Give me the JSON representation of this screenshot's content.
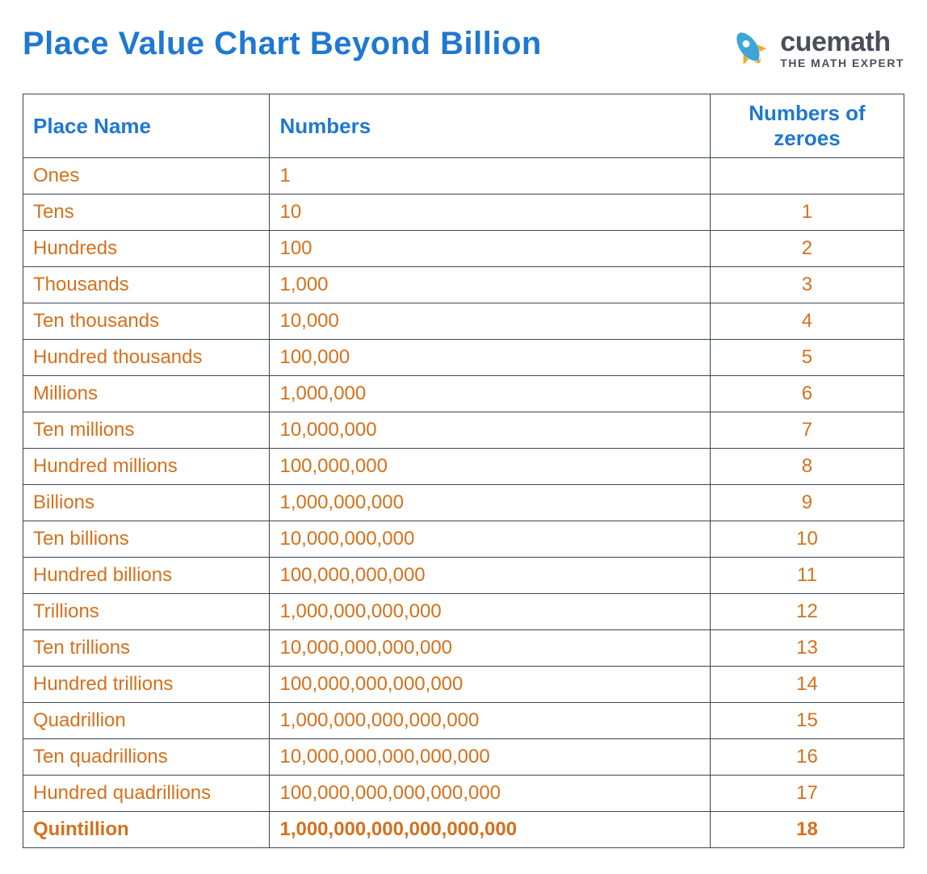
{
  "title": "Place Value Chart Beyond Billion",
  "title_color": "#1f78d1",
  "logo": {
    "main": "cuemath",
    "sub": "THE MATH EXPERT",
    "main_color": "#4a4f5a",
    "sub_color": "#4a4f5a",
    "rocket_body": "#3fa5d8",
    "rocket_flame": "#f5a623"
  },
  "table": {
    "border_color": "#3a4556",
    "header_color": "#1f78d1",
    "cell_color": "#d4711c",
    "columns": [
      "Place Name",
      "Numbers",
      "Numbers of zeroes"
    ],
    "rows": [
      {
        "place": "Ones",
        "number": "1",
        "zeroes": ""
      },
      {
        "place": "Tens",
        "number": "10",
        "zeroes": "1"
      },
      {
        "place": "Hundreds",
        "number": "100",
        "zeroes": "2"
      },
      {
        "place": "Thousands",
        "number": "1,000",
        "zeroes": "3"
      },
      {
        "place": "Ten thousands",
        "number": "10,000",
        "zeroes": "4"
      },
      {
        "place": "Hundred thousands",
        "number": "100,000",
        "zeroes": "5"
      },
      {
        "place": "Millions",
        "number": "1,000,000",
        "zeroes": "6"
      },
      {
        "place": "Ten millions",
        "number": "10,000,000",
        "zeroes": "7"
      },
      {
        "place": "Hundred millions",
        "number": "100,000,000",
        "zeroes": "8"
      },
      {
        "place": "Billions",
        "number": "1,000,000,000",
        "zeroes": "9"
      },
      {
        "place": "Ten billions",
        "number": "10,000,000,000",
        "zeroes": "10"
      },
      {
        "place": "Hundred billions",
        "number": "100,000,000,000",
        "zeroes": "11"
      },
      {
        "place": "Trillions",
        "number": "1,000,000,000,000",
        "zeroes": "12"
      },
      {
        "place": "Ten trillions",
        "number": "10,000,000,000,000",
        "zeroes": "13"
      },
      {
        "place": "Hundred trillions",
        "number": "100,000,000,000,000",
        "zeroes": "14"
      },
      {
        "place": "Quadrillion",
        "number": "1,000,000,000,000,000",
        "zeroes": "15"
      },
      {
        "place": "Ten quadrillions",
        "number": "10,000,000,000,000,000",
        "zeroes": "16"
      },
      {
        "place": "Hundred quadrillions",
        "number": "100,000,000,000,000,000",
        "zeroes": "17"
      },
      {
        "place": "Quintillion",
        "number": "1,000,000,000,000,000,000",
        "zeroes": "18",
        "bold": true
      }
    ]
  }
}
